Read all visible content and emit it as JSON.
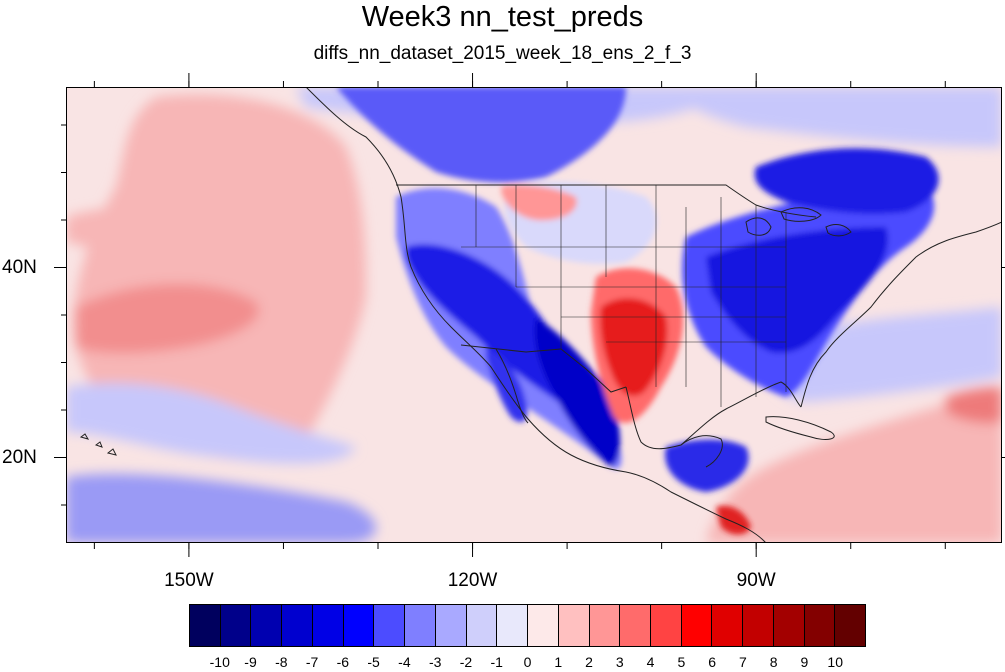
{
  "title": "Week3 nn_test_preds",
  "subtitle": "diffs_nn_dataset_2015_week_18_ens_2_f_3",
  "map": {
    "projection": "cylindrical-equidistant",
    "lon_range": [
      -163,
      -64
    ],
    "lat_range": [
      11,
      59
    ],
    "lon_labels": [
      {
        "lon": -150,
        "text": "150W"
      },
      {
        "lon": -120,
        "text": "120W"
      },
      {
        "lon": -90,
        "text": "90W"
      }
    ],
    "lat_labels": [
      {
        "lat": 40,
        "text": "40N"
      },
      {
        "lat": 20,
        "text": "20N"
      }
    ],
    "features": [
      "coastlines",
      "us-state-borders",
      "country-borders"
    ],
    "colors": {
      "ocean_background": "#f9e4e4",
      "strong_cold": "#0b1bd8",
      "strong_warm": "#e6191c"
    }
  },
  "colorbar": {
    "orientation": "horizontal",
    "labels": [
      "-10",
      "-9",
      "-8",
      "-7",
      "-6",
      "-5",
      "-4",
      "-3",
      "-2",
      "-1",
      "0",
      "1",
      "2",
      "3",
      "4",
      "5",
      "6",
      "7",
      "8",
      "9",
      "10"
    ],
    "colors": [
      "#00005e",
      "#00008a",
      "#0000b0",
      "#0000cf",
      "#0000e6",
      "#0000ff",
      "#4c4cff",
      "#7f7fff",
      "#a9a9ff",
      "#cfcffb",
      "#e8e8fb",
      "#fde9e9",
      "#ffc0c0",
      "#ff9696",
      "#ff6b6b",
      "#ff4343",
      "#ff0000",
      "#e00000",
      "#c20000",
      "#a30000",
      "#830000",
      "#630000"
    ]
  }
}
